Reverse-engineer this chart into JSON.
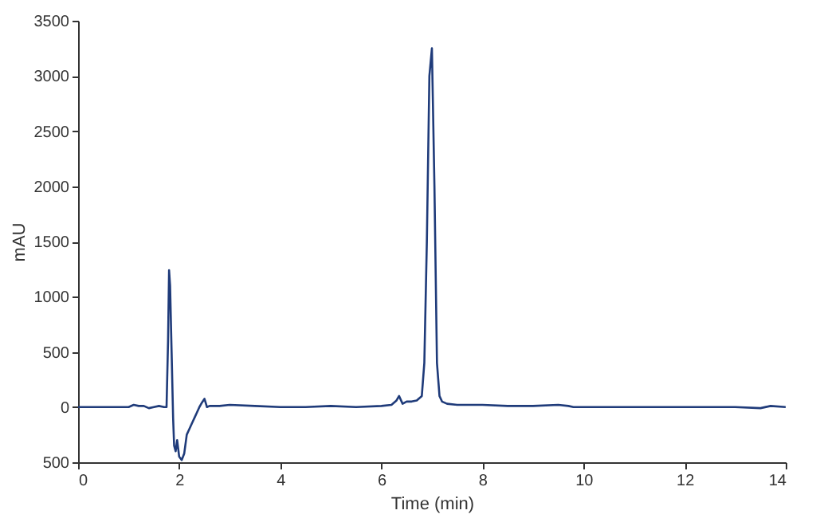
{
  "chart_data": {
    "type": "line",
    "xlabel": "Time (min)",
    "ylabel": "mAU",
    "xlim": [
      0,
      14
    ],
    "xticks": [
      0,
      2,
      4,
      6,
      8,
      10,
      12,
      14
    ],
    "ylim": [
      -500,
      3500
    ],
    "yticks": [
      {
        "value": -500,
        "label": "500"
      },
      0,
      500,
      1000,
      1500,
      2000,
      2500,
      3000,
      3500
    ],
    "grid": false,
    "marker": "none",
    "line_style": "solid",
    "series": [
      {
        "color": "#1f3b7a",
        "x": [
          0,
          0.5,
          1.0,
          1.1,
          1.2,
          1.3,
          1.4,
          1.5,
          1.6,
          1.7,
          1.75,
          1.78,
          1.8,
          1.82,
          1.85,
          1.88,
          1.9,
          1.93,
          1.96,
          2.0,
          2.05,
          2.1,
          2.15,
          2.2,
          2.25,
          2.3,
          2.35,
          2.4,
          2.45,
          2.5,
          2.55,
          2.6,
          2.8,
          3.0,
          3.5,
          4.0,
          4.5,
          5.0,
          5.5,
          6.0,
          6.2,
          6.3,
          6.35,
          6.42,
          6.5,
          6.6,
          6.7,
          6.8,
          6.85,
          6.9,
          6.95,
          7.0,
          7.05,
          7.1,
          7.15,
          7.2,
          7.3,
          7.5,
          8.0,
          8.5,
          9.0,
          9.5,
          9.7,
          9.8,
          10.0,
          11.0,
          12.0,
          13.0,
          13.5,
          13.7,
          14.0
        ],
        "values": [
          0,
          0,
          0,
          20,
          10,
          10,
          -10,
          0,
          10,
          0,
          0,
          600,
          1240,
          1100,
          500,
          -100,
          -350,
          -400,
          -300,
          -450,
          -480,
          -420,
          -250,
          -200,
          -150,
          -100,
          -50,
          0,
          40,
          75,
          0,
          10,
          10,
          20,
          10,
          0,
          0,
          10,
          0,
          10,
          20,
          60,
          100,
          30,
          50,
          50,
          60,
          100,
          400,
          1500,
          3000,
          3250,
          2000,
          400,
          100,
          50,
          30,
          20,
          20,
          10,
          10,
          20,
          10,
          0,
          0,
          0,
          0,
          0,
          -10,
          10,
          0
        ]
      }
    ]
  }
}
